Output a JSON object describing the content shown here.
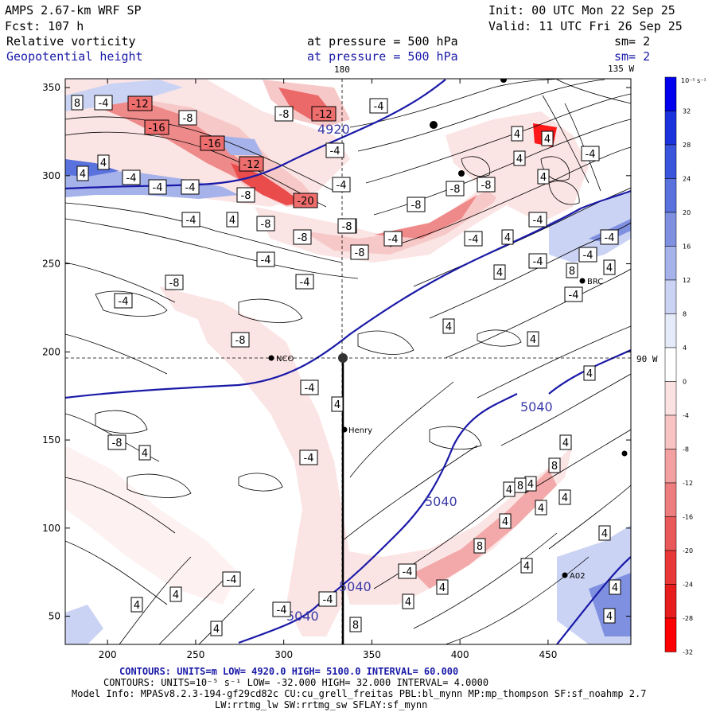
{
  "header": {
    "model": "AMPS 2.67-km WRF SP",
    "init": "Init: 00 UTC Mon 22 Sep 25",
    "fcst": "Fcst:  107 h",
    "valid": "Valid: 11 UTC Fri 26 Sep 25",
    "field1": "Relative vorticity",
    "field1_level": "at pressure =  500 hPa",
    "field1_sm": "sm= 2",
    "field2": "Geopotential height",
    "field2_level": "at pressure =  500 hPa",
    "field2_sm": "sm= 2"
  },
  "map_labels": {
    "lon_180": "180",
    "lon_135": "135 W",
    "lon_90": "90 W",
    "stations": [
      "NCO",
      "Henry",
      "BRC",
      "A02"
    ]
  },
  "chart_data": {
    "type": "contour_map",
    "x_ticks": [
      200,
      250,
      300,
      350,
      400,
      450
    ],
    "y_ticks": [
      50,
      100,
      150,
      200,
      250,
      300,
      350
    ],
    "x_range": [
      176,
      497
    ],
    "y_range": [
      34,
      355
    ],
    "height_contour_labels": [
      "5040",
      "5040",
      "5040",
      "5040",
      "4920"
    ],
    "vorticity_box_labels": [
      "8",
      "-4",
      "-12",
      "-16",
      "-8",
      "-16",
      "-12",
      "-8",
      "-20",
      "-12",
      "-8",
      "-4",
      "4",
      "-4",
      "-4",
      "-4",
      "4",
      "4",
      "-4",
      "-8",
      "-8",
      "-4",
      "-8",
      "-4",
      "-8",
      "-4",
      "-4",
      "4",
      "4",
      "-4",
      "-4",
      "-8",
      "-4",
      "-8",
      "-4",
      "4",
      "-4",
      "-8",
      "4",
      "-4",
      "-4",
      "-4",
      "-4",
      "4",
      "8",
      "4",
      "8",
      "4",
      "4",
      "4",
      "4",
      "4",
      "8",
      "4",
      "4",
      "4",
      "4",
      "4",
      "4",
      "4",
      "4",
      "4",
      "-8",
      "-8",
      "-4",
      "-4",
      "-8",
      "-4",
      "-4",
      "-4",
      "-4",
      "4",
      "4",
      "4",
      "-4",
      "4",
      "4",
      "8",
      "8",
      "4",
      "4"
    ],
    "colorbar": {
      "unit_label": "10⁻⁵ s⁻¹",
      "ticks": [
        "32",
        "28",
        "24",
        "20",
        "16",
        "12",
        "8",
        "4",
        "0",
        "-4",
        "-8",
        "-12",
        "-16",
        "-20",
        "-24",
        "-28",
        "-32"
      ],
      "colors": [
        "#0000ee",
        "#1a33dd",
        "#3a55dd",
        "#5a72dd",
        "#7f90e0",
        "#a6b2ea",
        "#cbd3f4",
        "#e6ebfa",
        "#ffffff",
        "#fbe2e2",
        "#f7c3c3",
        "#f2a0a0",
        "#ee7e7e",
        "#ea5959",
        "#e83838",
        "#e81c1c",
        "#ff0000"
      ]
    }
  },
  "footer": {
    "line1": "CONTOURS:  UNITS=m  LOW=  4920.0          HIGH=  5100.0          INTERVAL=   60.000",
    "line2": "CONTOURS:  UNITS=10⁻⁵ s⁻¹  LOW=  -32.000          HIGH=  32.000          INTERVAL=  4.0000",
    "line3": "Model Info: MPASv8.2.3-194-gf29cd82c CU:cu_grell_freitas PBL:bl_mynn MP:mp_thompson SF:sf_noahmp 2.7",
    "line4": "LW:rrtmg_lw SW:rrtmg_sw SFLAY:sf_mynn"
  }
}
